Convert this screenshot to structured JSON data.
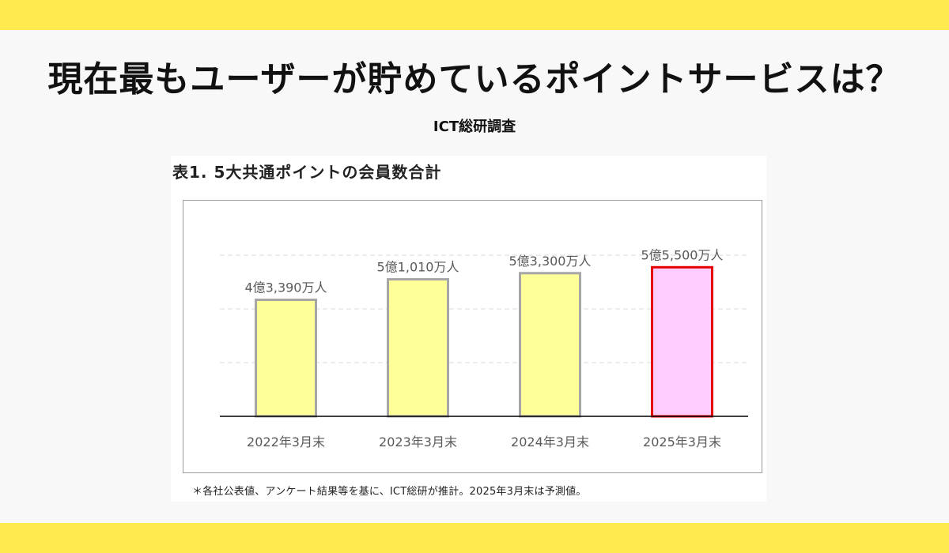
{
  "headline": "現在最もユーザーが貯めているポイントサービスは？",
  "source": "ICT総研調査",
  "panel_title": "表1.  5大共通ポイントの会員数合計",
  "footnote": "＊各社公表値、アンケート結果等を基に、ICT総研が推計。2025年3月末は予測値。",
  "colors": {
    "band": "#ffeb4f",
    "bar_fill": "#ffff99",
    "bar_border": "#a6a6a6",
    "highlight_fill": "#ffccff",
    "highlight_border": "#e60000"
  },
  "chart_data": {
    "type": "bar",
    "title": "表1.  5大共通ポイントの会員数合計",
    "categories": [
      "2022年3月末",
      "2023年3月末",
      "2024年3月末",
      "2025年3月末"
    ],
    "values": [
      43390,
      51010,
      53300,
      55500
    ],
    "unit": "万人",
    "data_labels": [
      "4億3,390万人",
      "5億1,010万人",
      "5億3,300万人",
      "5億5,500万人"
    ],
    "highlight_index": 3,
    "ylim": [
      0,
      60000
    ],
    "gridlines": [
      20000,
      40000,
      60000
    ],
    "grid": true,
    "xlabel": "",
    "ylabel": ""
  }
}
